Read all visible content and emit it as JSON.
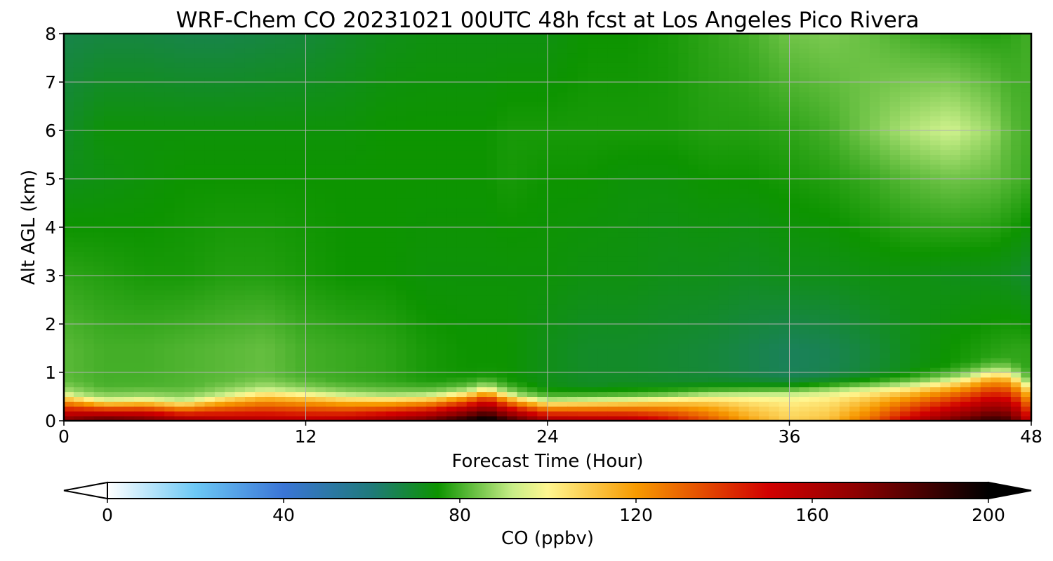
{
  "chart_data": {
    "type": "heatmap",
    "title": "WRF-Chem CO  20231021 00UTC 48h fcst at Los Angeles Pico Rivera",
    "xlabel": "Forecast Time (Hour)",
    "ylabel": "Alt AGL (km)",
    "xlim": [
      0,
      48
    ],
    "ylim": [
      0,
      8
    ],
    "xticks": [
      0,
      12,
      24,
      36,
      48
    ],
    "xtick_labels": [
      "0",
      "12",
      "24",
      "36",
      "48"
    ],
    "yticks": [
      0,
      1,
      2,
      3,
      4,
      5,
      6,
      7,
      8
    ],
    "ytick_labels": [
      "0",
      "1",
      "2",
      "3",
      "4",
      "5",
      "6",
      "7",
      "8"
    ],
    "grid": true,
    "colorbar": {
      "label": "CO  (ppbv)",
      "orientation": "horizontal",
      "min": 0,
      "max": 200,
      "ticks": [
        0,
        40,
        80,
        120,
        160,
        200
      ],
      "tick_labels": [
        "0",
        "40",
        "80",
        "120",
        "160",
        "200"
      ],
      "extend": "both",
      "colors": [
        {
          "v": 0,
          "c": "#ffffff"
        },
        {
          "v": 20,
          "c": "#6cc8f5"
        },
        {
          "v": 40,
          "c": "#3a75d6"
        },
        {
          "v": 60,
          "c": "#1f7a7a"
        },
        {
          "v": 75,
          "c": "#0d9400"
        },
        {
          "v": 92,
          "c": "#c8ee88"
        },
        {
          "v": 100,
          "c": "#fff690"
        },
        {
          "v": 120,
          "c": "#f79a00"
        },
        {
          "v": 150,
          "c": "#d10000"
        },
        {
          "v": 170,
          "c": "#8e0000"
        },
        {
          "v": 200,
          "c": "#000000"
        }
      ]
    },
    "x_hours": [
      0,
      2,
      4,
      6,
      8,
      10,
      12,
      14,
      16,
      18,
      20,
      21,
      22,
      24,
      26,
      28,
      30,
      32,
      34,
      36,
      38,
      40,
      42,
      44,
      46,
      47,
      48
    ],
    "boundary_layer_top_km": [
      0.85,
      0.72,
      0.75,
      0.7,
      0.82,
      0.92,
      0.88,
      0.82,
      0.8,
      0.82,
      0.88,
      0.95,
      0.85,
      0.72,
      0.74,
      0.76,
      0.8,
      0.85,
      0.88,
      0.9,
      0.95,
      1.0,
      1.05,
      1.15,
      1.3,
      1.3,
      1.02
    ],
    "surface_co_ppbv": [
      175,
      185,
      180,
      168,
      162,
      160,
      158,
      160,
      168,
      178,
      195,
      205,
      190,
      165,
      162,
      160,
      150,
      135,
      118,
      108,
      112,
      130,
      155,
      175,
      190,
      185,
      150
    ],
    "free_troposphere_co_ppbv": {
      "at_1.5km": [
        82,
        80,
        80,
        81,
        82,
        83,
        80,
        79,
        78,
        76,
        75,
        75,
        75,
        72,
        70,
        70,
        69,
        68,
        66,
        64,
        65,
        68,
        72,
        75,
        77,
        78,
        78
      ],
      "at_3km": [
        78,
        77,
        76,
        76,
        77,
        77,
        76,
        75,
        75,
        74,
        74,
        74,
        74,
        74,
        73,
        73,
        72,
        72,
        71,
        72,
        72,
        73,
        73,
        72,
        72,
        71,
        69
      ],
      "at_5km": [
        72,
        73,
        74,
        75,
        75,
        75,
        75,
        75,
        75,
        75,
        75,
        75,
        76,
        75,
        75,
        74,
        74,
        75,
        75,
        76,
        77,
        79,
        82,
        84,
        83,
        81,
        79
      ],
      "at_6km": [
        70,
        74,
        74,
        74,
        74,
        74,
        74,
        74,
        75,
        75,
        75,
        75,
        76,
        76,
        76,
        76,
        76,
        77,
        77,
        78,
        80,
        85,
        90,
        93,
        88,
        82,
        80
      ],
      "at_8km": [
        66,
        67,
        67,
        66,
        66,
        67,
        68,
        70,
        72,
        73,
        73,
        73,
        73,
        73,
        75,
        75,
        76,
        78,
        80,
        84,
        85,
        83,
        80,
        78,
        77,
        78,
        80
      ]
    }
  }
}
